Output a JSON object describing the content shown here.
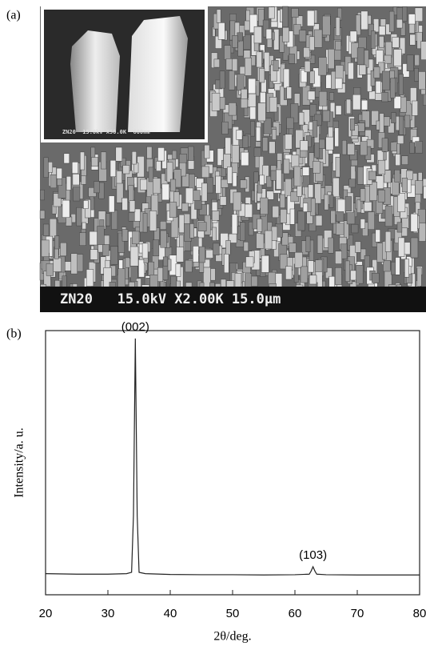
{
  "figure": {
    "panel_a_label": "(a)",
    "sem_caption": "ZN20   15.0kV X2.00K 15.0µm",
    "inset_caption": "ZN20  15.0kV X50.0K  600nm"
  },
  "chart_data": {
    "type": "line",
    "panel_label": "(b)",
    "x_label": "2θ/deg.",
    "y_label": "Intensity/a. u.",
    "x": [
      20,
      25,
      30,
      33,
      33.8,
      34.1,
      34.4,
      34.7,
      35,
      36,
      40,
      45,
      50,
      55,
      60,
      62.3,
      62.6,
      62.9,
      63.2,
      63.5,
      65,
      70,
      75,
      80
    ],
    "values": [
      8,
      7.8,
      7.8,
      8,
      8.5,
      30,
      97,
      30,
      8.5,
      8,
      7.7,
      7.6,
      7.6,
      7.5,
      7.6,
      7.8,
      9,
      10.6,
      9,
      7.8,
      7.6,
      7.5,
      7.5,
      7.5
    ],
    "color": "#222222",
    "xlim": [
      20,
      80
    ],
    "ylim": [
      0,
      100
    ],
    "xticks": [
      20,
      30,
      40,
      50,
      60,
      70,
      80
    ],
    "annotations": [
      {
        "label": "(002)",
        "x": 34.4,
        "y": 97
      },
      {
        "label": "(103)",
        "x": 62.9,
        "y": 10.6
      }
    ]
  }
}
